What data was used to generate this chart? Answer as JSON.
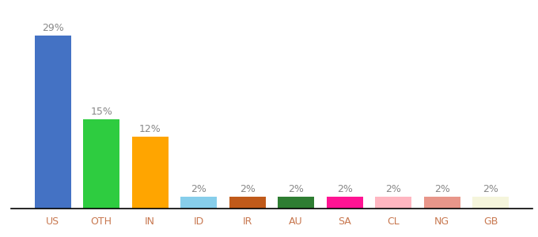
{
  "categories": [
    "US",
    "OTH",
    "IN",
    "ID",
    "IR",
    "AU",
    "SA",
    "CL",
    "NG",
    "GB"
  ],
  "values": [
    29,
    15,
    12,
    2,
    2,
    2,
    2,
    2,
    2,
    2
  ],
  "bar_colors": [
    "#4472C4",
    "#2ECC40",
    "#FFA500",
    "#87CEEB",
    "#C05A1A",
    "#2E7D32",
    "#FF1493",
    "#FFB6C1",
    "#E8968A",
    "#F5F5DC"
  ],
  "ylabel": "",
  "xlabel": "",
  "ylim": [
    0,
    33
  ],
  "label_fontsize": 9,
  "tick_fontsize": 9,
  "tick_color": "#C87850",
  "label_color": "#888888",
  "background_color": "#ffffff",
  "bar_width": 0.75
}
